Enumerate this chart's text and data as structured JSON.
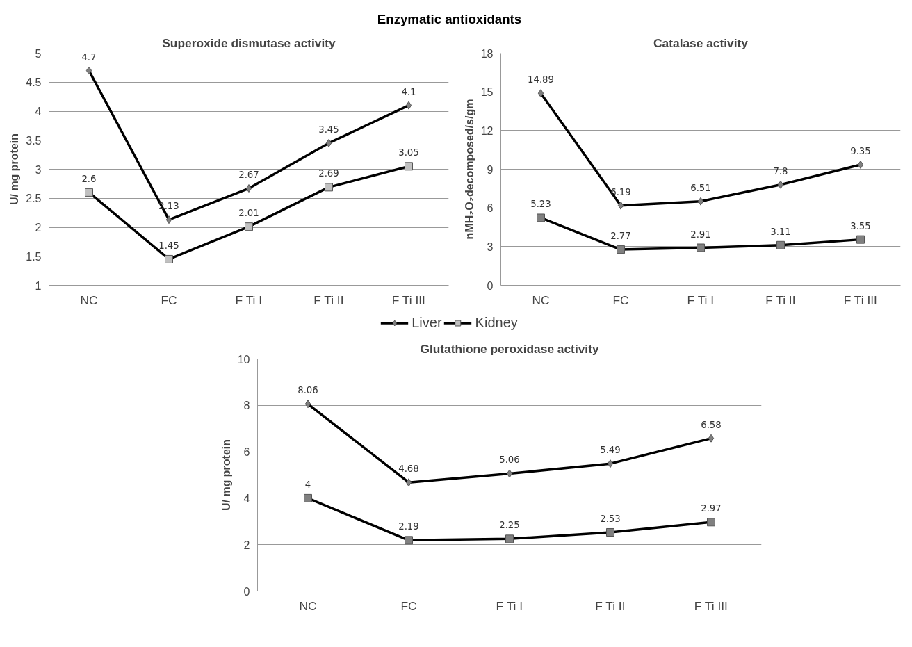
{
  "chart_data": [
    {
      "type": "line",
      "title": "Superoxide dismutase activity",
      "annotations": [
        "Enzymatic antioxidants"
      ],
      "ylabel": "U/ mg protein",
      "categories": [
        "NC",
        "FC",
        "F Ti I",
        "F Ti II",
        "F Ti III"
      ],
      "ylim": [
        1,
        5
      ],
      "yticks": [
        1,
        {
          "value": 1.5,
          "label": "1.5"
        },
        2,
        {
          "value": 2.5,
          "label": "2.5"
        },
        3,
        {
          "value": 3.5,
          "label": "3.5"
        },
        4,
        {
          "value": 4.5,
          "label": "4.5"
        },
        5
      ],
      "grid": "y",
      "data_labels": true,
      "legend": "bottom",
      "series": [
        {
          "name": "Liver",
          "color": "#808080",
          "marker": "diamond",
          "values": [
            4.7,
            2.13,
            2.67,
            3.45,
            4.1
          ]
        },
        {
          "name": "Kidney",
          "color": "#c0c0c0",
          "marker": "square",
          "values": [
            2.6,
            1.45,
            2.01,
            2.69,
            3.05
          ]
        }
      ]
    },
    {
      "type": "line",
      "title": "Catalase activity",
      "ylabel": "nMH₂O₂decomposed/s/gm",
      "categories": [
        "NC",
        "FC",
        "F Ti I",
        "F Ti II",
        "F Ti III"
      ],
      "ylim": [
        0,
        18
      ],
      "yticks": [
        0,
        3,
        6,
        9,
        12,
        15,
        18
      ],
      "grid": "y",
      "data_labels": true,
      "series": [
        {
          "color": "#808080",
          "marker": "diamond",
          "values": [
            14.89,
            6.19,
            6.51,
            7.8,
            9.35
          ]
        },
        {
          "color": "#808080",
          "marker": "square",
          "values": [
            5.23,
            2.77,
            2.91,
            3.11,
            3.55
          ]
        }
      ]
    },
    {
      "type": "line",
      "title": "Glutathione peroxidase activity",
      "ylabel": "U/ mg protein",
      "categories": [
        "NC",
        "FC",
        "F Ti I",
        "F Ti II",
        "F Ti III"
      ],
      "ylim": [
        0,
        10
      ],
      "yticks": [
        0,
        2,
        4,
        6,
        8,
        10
      ],
      "grid": "y",
      "data_labels": true,
      "series": [
        {
          "color": "#808080",
          "marker": "diamond",
          "values": [
            8.06,
            4.68,
            5.06,
            5.49,
            6.58
          ]
        },
        {
          "color": "#808080",
          "marker": "square",
          "values": [
            4,
            2.19,
            2.25,
            2.53,
            2.97
          ]
        }
      ]
    }
  ]
}
